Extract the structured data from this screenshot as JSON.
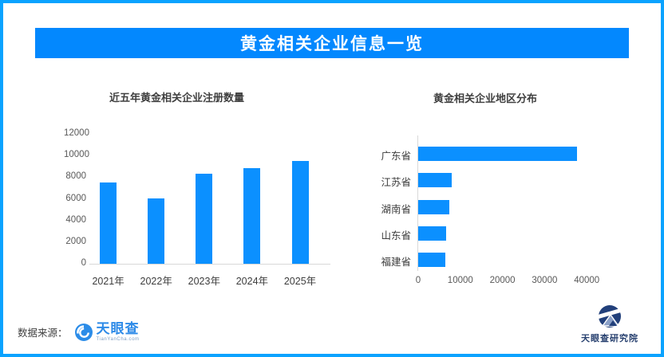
{
  "page": {
    "title": "黄金相关企业信息一览"
  },
  "colors": {
    "border": "#0aa3ff",
    "banner": "#0388fe",
    "bar": "#0b90ff",
    "axis_line": "#d9d9d9",
    "axis_label": "#595959",
    "category_label": "#3d3d3d",
    "tyc_blue": "#2e8be8",
    "research_navy": "#27406f"
  },
  "footer": {
    "source_label": "数据来源：",
    "tianyancha_logo_text": "天眼查",
    "tianyancha_logo_sub": "TianYanCha.com",
    "research_logo_text": "天眼查研究院"
  },
  "chart_data": [
    {
      "type": "bar",
      "title": "近五年黄金相关企业注册数量",
      "categories": [
        "2021年",
        "2022年",
        "2023年",
        "2024年",
        "2025年"
      ],
      "values": [
        7500,
        6050,
        8300,
        8850,
        9500
      ],
      "xlabel": "",
      "ylabel": "",
      "ylim": [
        0,
        12000
      ],
      "yticks": [
        0,
        2000,
        4000,
        6000,
        8000,
        10000,
        12000
      ],
      "grid": false,
      "legend": "none",
      "bar_color": "#0b90ff"
    },
    {
      "type": "bar-horizontal",
      "title": "黄金相关企业地区分布",
      "categories": [
        "广东省",
        "江苏省",
        "湖南省",
        "山东省",
        "福建省"
      ],
      "values": [
        37600,
        7900,
        7300,
        6700,
        6500
      ],
      "xlabel": "",
      "ylabel": "",
      "xlim": [
        0,
        50000
      ],
      "xticks": [
        0,
        10000,
        20000,
        30000,
        40000
      ],
      "grid": false,
      "legend": "none",
      "bar_color": "#0b90ff"
    }
  ]
}
